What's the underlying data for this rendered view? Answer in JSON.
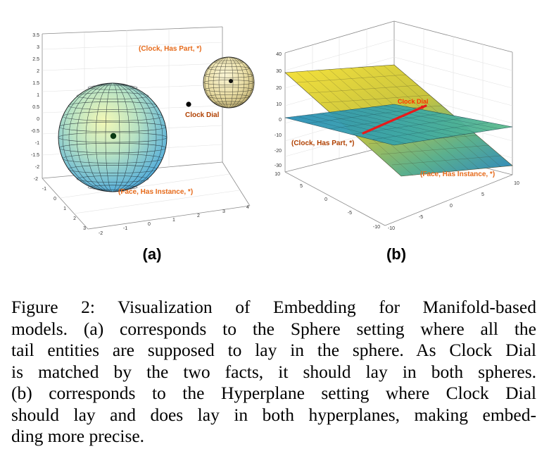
{
  "panel_a": {
    "label": "(a)",
    "z_ticks": [
      "3.5",
      "3",
      "2.5",
      "2",
      "1.5",
      "1",
      "0.5",
      "0",
      "-0.5",
      "-1",
      "-1.5",
      "-2"
    ],
    "y_ticks": [
      "-2",
      "-1",
      "0",
      "1",
      "2",
      "3"
    ],
    "x_ticks": [
      "-2",
      "-1",
      "0",
      "1",
      "2",
      "3",
      "4"
    ],
    "annotations": {
      "clock_has_part": "(Clock, Has Part, *)",
      "clock_dial": "Clock Dial",
      "face_has_instance": "(Face, Has Instance, *)"
    }
  },
  "panel_b": {
    "label": "(b)",
    "z_ticks": [
      "40",
      "30",
      "20",
      "10",
      "0",
      "-10",
      "-20",
      "-30"
    ],
    "y_ticks": [
      "10",
      "5",
      "0",
      "-5",
      "-10"
    ],
    "x_ticks": [
      "-10",
      "-5",
      "0",
      "5",
      "10"
    ],
    "annotations": {
      "clock_dial": "Clock Dial",
      "clock_has_part": "(Clock, Has Part, *)",
      "face_has_instance": "(Face, Has Instance, *)"
    }
  },
  "caption": {
    "lines": [
      "Figure 2: Visualization of Embedding for Manifold-based",
      "models. (a) corresponds to the Sphere setting where all the",
      "tail entities are supposed to lay in the sphere. As Clock Dial",
      "is matched by the two facts, it should lay in both spheres.",
      "(b) corresponds to the Hyperplane setting where Clock Dial",
      "should lay and does lay in both hyperplanes, making embed-",
      "ding more precise."
    ]
  },
  "colors": {
    "orange_label": "#e66a1a",
    "red_label": "#ff3300",
    "sphere_big_top": "#e9f6a0",
    "sphere_big_bottom": "#63b7e0",
    "sphere_small": "#f2eab6",
    "plane_top": "#f4d93a",
    "plane_bottom": "#3aa2c9"
  }
}
